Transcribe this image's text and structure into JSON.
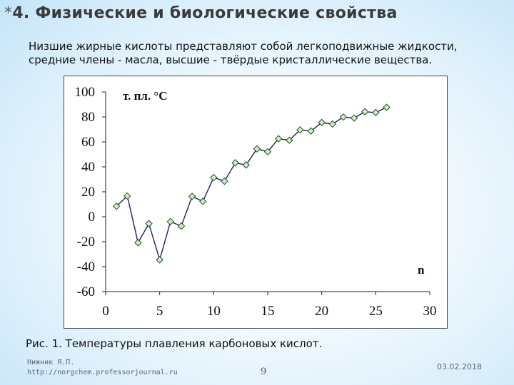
{
  "slide": {
    "bullet": "*",
    "title": "4. Физические и биологические свойства",
    "description": "Низшие жирные кислоты представляют собой легкоподвижные жидкости, средние члены - масла, высшие - твёрдые кристаллические вещества.",
    "caption": "Рис. 1. Температуры плавления карбоновых кислот.",
    "author_name": "Нижник Я.П.",
    "author_url": "http://norgchem.professorjournal.ru",
    "page_number": "9",
    "date": "03.02.2018"
  },
  "chart_data": {
    "type": "line",
    "title": "",
    "ylabel": "т. пл. °С",
    "xlabel": "n",
    "xlim": [
      0,
      30
    ],
    "ylim": [
      -60,
      100
    ],
    "xticks": [
      0,
      5,
      10,
      15,
      20,
      25,
      30
    ],
    "yticks": [
      100,
      80,
      60,
      40,
      20,
      0,
      -20,
      -40,
      -60
    ],
    "grid": false,
    "series": [
      {
        "name": "",
        "color": "#1f1f5e",
        "marker": "diamond",
        "marker_color": "#c8f0c0",
        "x": [
          1,
          2,
          3,
          4,
          5,
          6,
          7,
          8,
          9,
          10,
          11,
          12,
          13,
          14,
          15,
          16,
          17,
          18,
          19,
          20,
          21,
          22,
          23,
          24,
          25,
          26
        ],
        "y": [
          8.4,
          16.6,
          -20.8,
          -5.5,
          -34.5,
          -3.9,
          -7.5,
          16.3,
          12.3,
          31.4,
          28.5,
          43.2,
          41.5,
          54.4,
          52.1,
          62.5,
          61.3,
          69.6,
          68.7,
          75.5,
          74.3,
          79.9,
          79.1,
          84.2,
          83.5,
          87.7
        ]
      }
    ]
  }
}
